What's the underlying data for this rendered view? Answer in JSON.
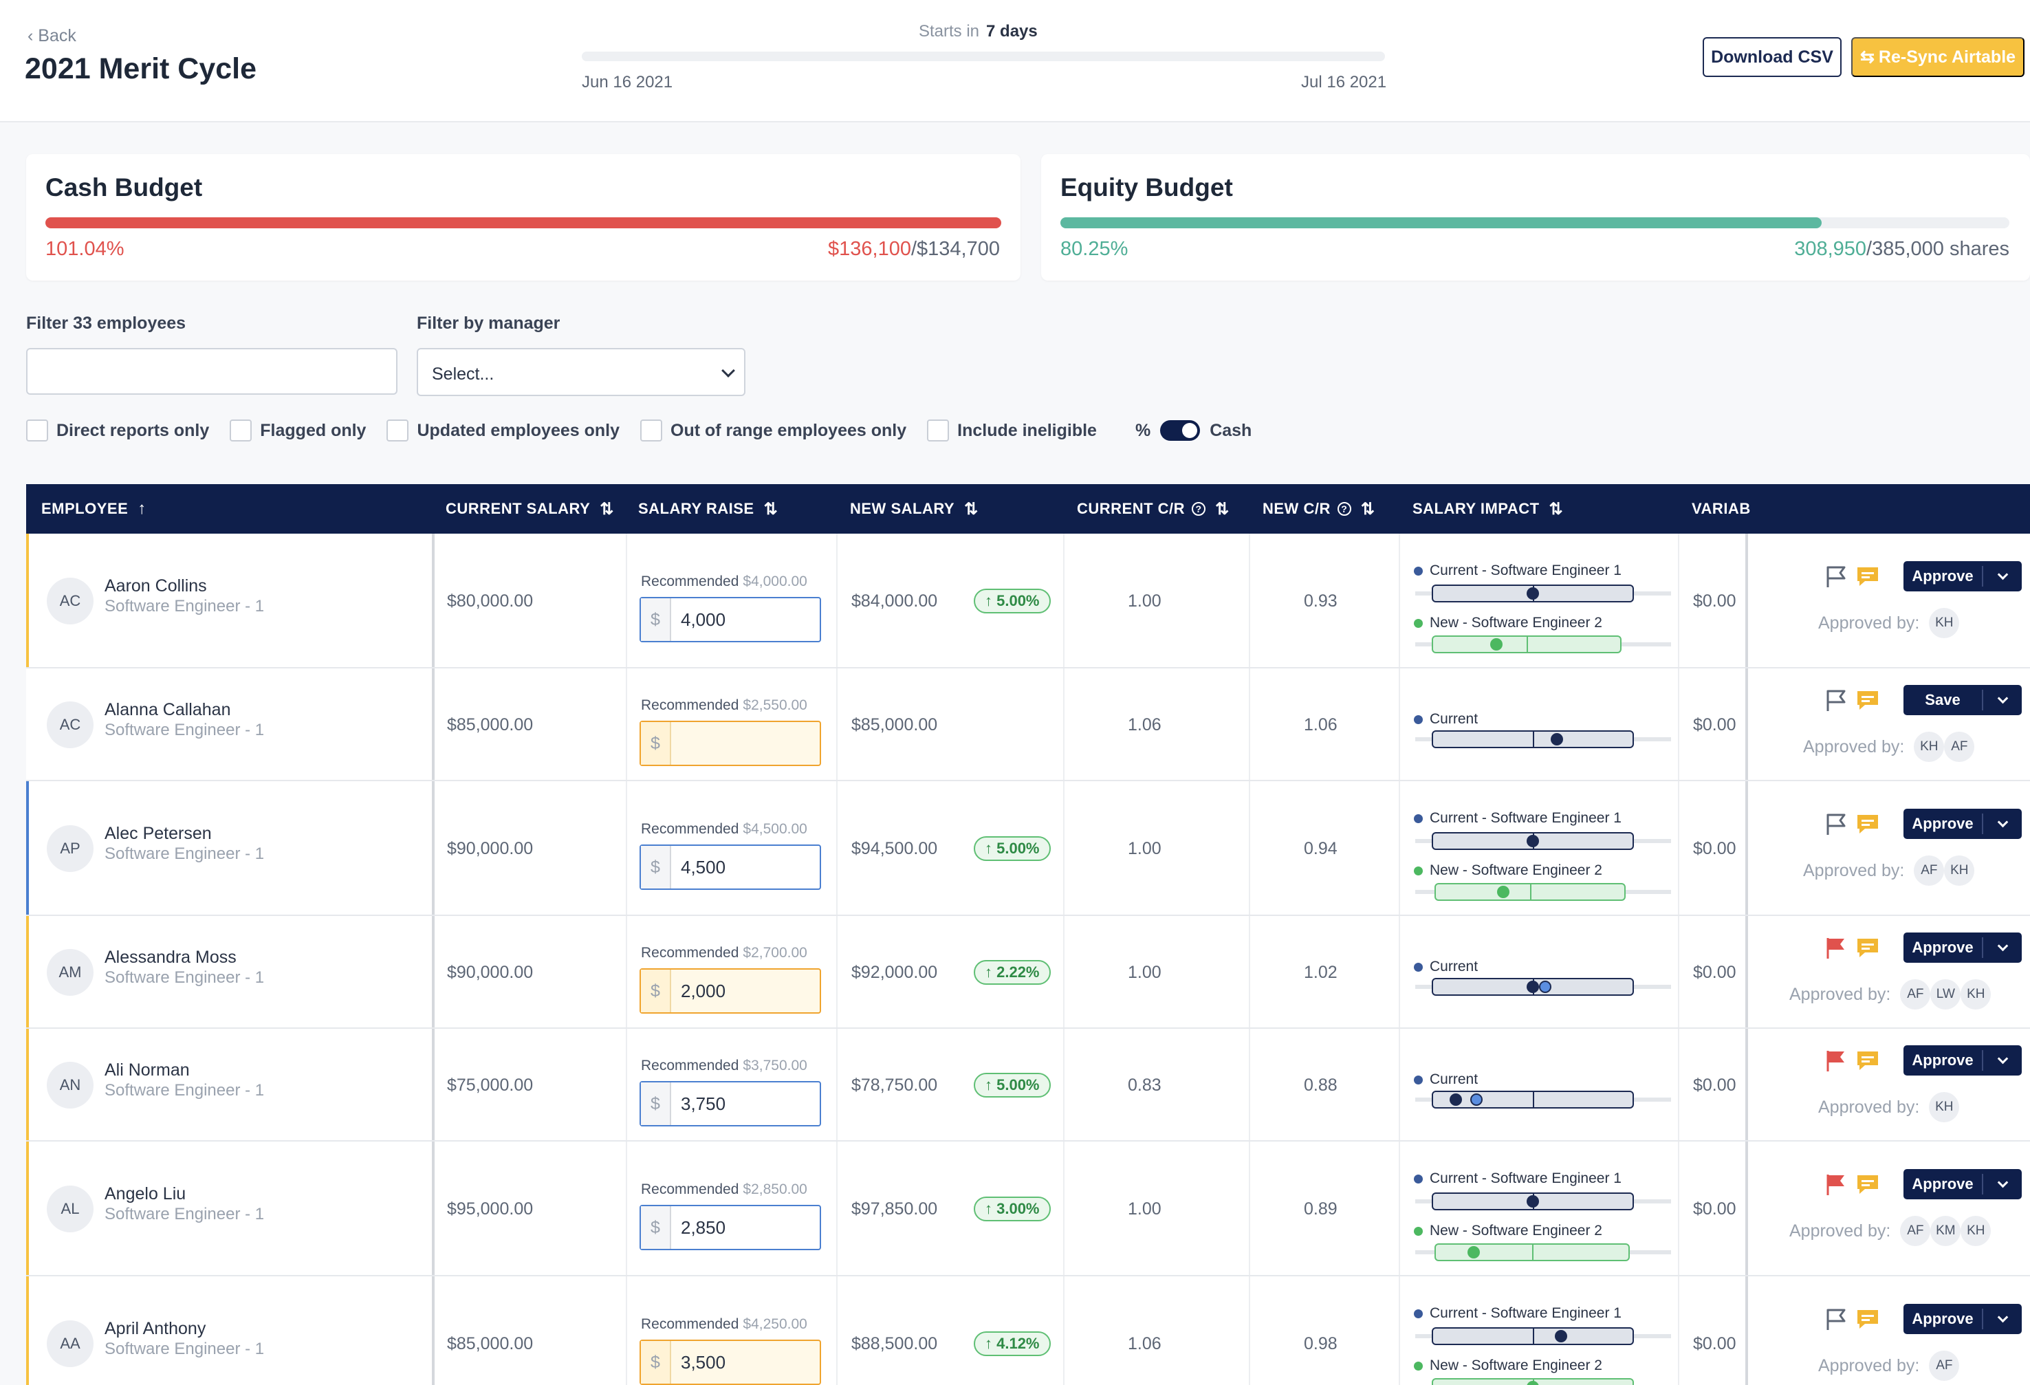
{
  "header": {
    "back_label": "Back",
    "title": "2021 Merit Cycle",
    "starts_in_label": "Starts in",
    "starts_in_value": "7 days",
    "start_date": "Jun 16 2021",
    "end_date": "Jul 16 2021",
    "download_csv": "Download CSV",
    "resync": "Re-Sync Airtable"
  },
  "budgets": {
    "cash": {
      "title": "Cash Budget",
      "percent": "101.04%",
      "used": "$136,100",
      "total": "/$134,700",
      "fill_fraction": 1.0,
      "color": "#e0524d"
    },
    "equity": {
      "title": "Equity Budget",
      "percent": "80.25%",
      "used": "308,950",
      "total": "/385,000 shares",
      "fill_fraction": 0.8025,
      "color": "#5cb8a0"
    }
  },
  "filters": {
    "employees_label": "Filter 33 employees",
    "manager_label": "Filter by manager",
    "manager_value": "Select...",
    "checkboxes": [
      "Direct reports only",
      "Flagged only",
      "Updated employees only",
      "Out of range employees only",
      "Include ineligible"
    ],
    "toggle_left": "%",
    "toggle_right": "Cash"
  },
  "table": {
    "columns": [
      "EMPLOYEE",
      "CURRENT SALARY",
      "SALARY RAISE",
      "NEW SALARY",
      "CURRENT C/R",
      "NEW C/R",
      "SALARY IMPACT",
      "VARIAB"
    ],
    "recommended_label": "Recommended",
    "currency_symbol": "$",
    "approved_by_label": "Approved by:",
    "impact_current": "Current",
    "impact_current_level": "Current - Software Engineer 1",
    "impact_new_level": "New - Software Engineer 2",
    "rows": [
      {
        "initials": "AC",
        "name": "Aaron Collins",
        "title": "Software Engineer - 1",
        "current_salary": "$80,000.00",
        "recommended": "$4,000.00",
        "raise": "4,000",
        "new_salary": "$84,000.00",
        "pill": "↑ 5.00%",
        "current_cr": "1.00",
        "new_cr": "0.93",
        "variable": "$0.00",
        "action": "Approve",
        "approvers": [
          "KH"
        ]
      },
      {
        "initials": "AC",
        "name": "Alanna Callahan",
        "title": "Software Engineer - 1",
        "current_salary": "$85,000.00",
        "recommended": "$2,550.00",
        "raise": "",
        "new_salary": "$85,000.00",
        "pill": "",
        "current_cr": "1.06",
        "new_cr": "1.06",
        "variable": "$0.00",
        "action": "Save",
        "approvers": [
          "KH",
          "AF"
        ]
      },
      {
        "initials": "AP",
        "name": "Alec Petersen",
        "title": "Software Engineer - 1",
        "current_salary": "$90,000.00",
        "recommended": "$4,500.00",
        "raise": "4,500",
        "new_salary": "$94,500.00",
        "pill": "↑ 5.00%",
        "current_cr": "1.00",
        "new_cr": "0.94",
        "variable": "$0.00",
        "action": "Approve",
        "approvers": [
          "AF",
          "KH"
        ]
      },
      {
        "initials": "AM",
        "name": "Alessandra Moss",
        "title": "Software Engineer - 1",
        "current_salary": "$90,000.00",
        "recommended": "$2,700.00",
        "raise": "2,000",
        "new_salary": "$92,000.00",
        "pill": "↑ 2.22%",
        "current_cr": "1.00",
        "new_cr": "1.02",
        "variable": "$0.00",
        "action": "Approve",
        "approvers": [
          "AF",
          "LW",
          "KH"
        ]
      },
      {
        "initials": "AN",
        "name": "Ali Norman",
        "title": "Software Engineer - 1",
        "current_salary": "$75,000.00",
        "recommended": "$3,750.00",
        "raise": "3,750",
        "new_salary": "$78,750.00",
        "pill": "↑ 5.00%",
        "current_cr": "0.83",
        "new_cr": "0.88",
        "variable": "$0.00",
        "action": "Approve",
        "approvers": [
          "KH"
        ]
      },
      {
        "initials": "AL",
        "name": "Angelo Liu",
        "title": "Software Engineer - 1",
        "current_salary": "$95,000.00",
        "recommended": "$2,850.00",
        "raise": "2,850",
        "new_salary": "$97,850.00",
        "pill": "↑ 3.00%",
        "current_cr": "1.00",
        "new_cr": "0.89",
        "variable": "$0.00",
        "action": "Approve",
        "approvers": [
          "AF",
          "KM",
          "KH"
        ]
      },
      {
        "initials": "AA",
        "name": "April Anthony",
        "title": "Software Engineer - 1",
        "current_salary": "$85,000.00",
        "recommended": "$4,250.00",
        "raise": "3,500",
        "new_salary": "$88,500.00",
        "pill": "↑ 4.12%",
        "current_cr": "1.06",
        "new_cr": "0.98",
        "variable": "$0.00",
        "action": "Approve",
        "approvers": [
          "AF"
        ]
      }
    ]
  }
}
